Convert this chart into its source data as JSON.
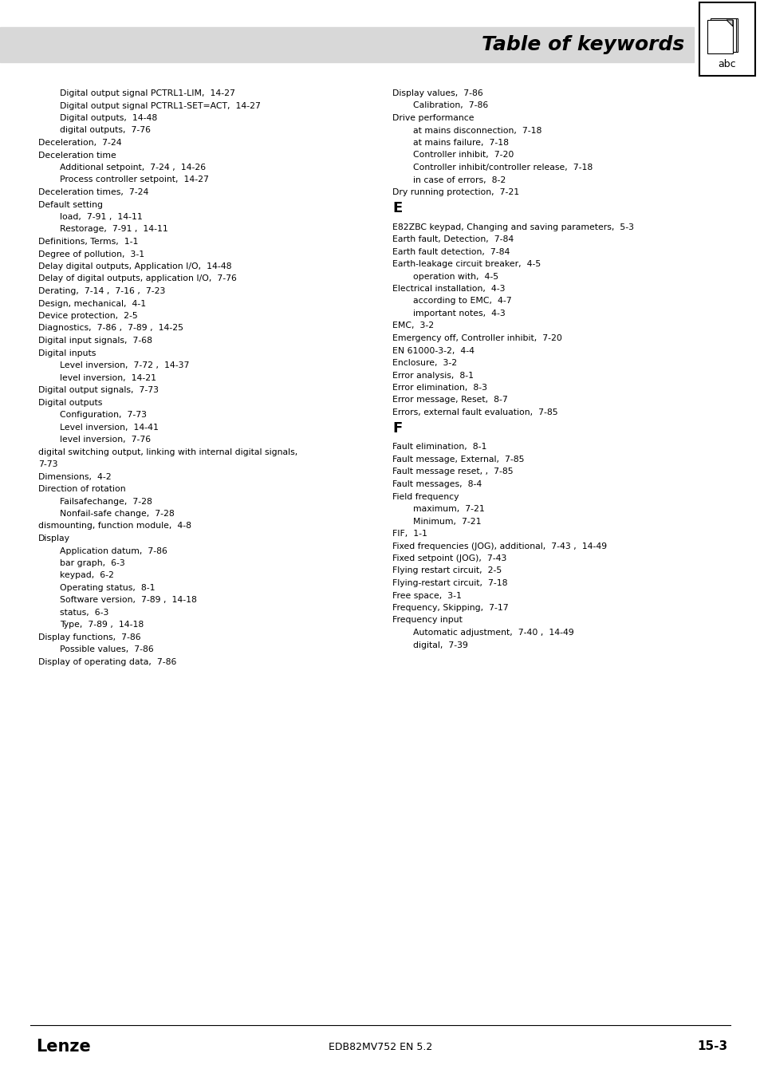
{
  "title": "Table of keywords",
  "bg_color": "#ffffff",
  "header_bg": "#d8d8d8",
  "footer_text_left": "Lenze",
  "footer_text_center": "EDB82MV752 EN 5.2",
  "footer_text_right": "15-3",
  "left_column": [
    {
      "text": "Digital output signal PCTRL1-LIM,  14-27",
      "indent": 1,
      "bold": false
    },
    {
      "text": "Digital output signal PCTRL1-SET=ACT,  14-27",
      "indent": 1,
      "bold": false
    },
    {
      "text": "Digital outputs,  14-48",
      "indent": 1,
      "bold": false
    },
    {
      "text": "digital outputs,  7-76",
      "indent": 1,
      "bold": false
    },
    {
      "text": "Deceleration,  7-24",
      "indent": 0,
      "bold": false
    },
    {
      "text": "Deceleration time",
      "indent": 0,
      "bold": false
    },
    {
      "text": "Additional setpoint,  7-24 ,  14-26",
      "indent": 1,
      "bold": false
    },
    {
      "text": "Process controller setpoint,  14-27",
      "indent": 1,
      "bold": false
    },
    {
      "text": "Deceleration times,  7-24",
      "indent": 0,
      "bold": false
    },
    {
      "text": "Default setting",
      "indent": 0,
      "bold": false
    },
    {
      "text": "load,  7-91 ,  14-11",
      "indent": 1,
      "bold": false
    },
    {
      "text": "Restorage,  7-91 ,  14-11",
      "indent": 1,
      "bold": false
    },
    {
      "text": "Definitions, Terms,  1-1",
      "indent": 0,
      "bold": false
    },
    {
      "text": "Degree of pollution,  3-1",
      "indent": 0,
      "bold": false
    },
    {
      "text": "Delay digital outputs, Application I/O,  14-48",
      "indent": 0,
      "bold": false
    },
    {
      "text": "Delay of digital outputs, application I/O,  7-76",
      "indent": 0,
      "bold": false
    },
    {
      "text": "Derating,  7-14 ,  7-16 ,  7-23",
      "indent": 0,
      "bold": false
    },
    {
      "text": "Design, mechanical,  4-1",
      "indent": 0,
      "bold": false
    },
    {
      "text": "Device protection,  2-5",
      "indent": 0,
      "bold": false
    },
    {
      "text": "Diagnostics,  7-86 ,  7-89 ,  14-25",
      "indent": 0,
      "bold": false
    },
    {
      "text": "Digital input signals,  7-68",
      "indent": 0,
      "bold": false
    },
    {
      "text": "Digital inputs",
      "indent": 0,
      "bold": false
    },
    {
      "text": "Level inversion,  7-72 ,  14-37",
      "indent": 1,
      "bold": false
    },
    {
      "text": "level inversion,  14-21",
      "indent": 1,
      "bold": false
    },
    {
      "text": "Digital output signals,  7-73",
      "indent": 0,
      "bold": false
    },
    {
      "text": "Digital outputs",
      "indent": 0,
      "bold": false
    },
    {
      "text": "Configuration,  7-73",
      "indent": 1,
      "bold": false
    },
    {
      "text": "Level inversion,  14-41",
      "indent": 1,
      "bold": false
    },
    {
      "text": "level inversion,  7-76",
      "indent": 1,
      "bold": false
    },
    {
      "text": "digital switching output, linking with internal digital signals,",
      "indent": 0,
      "bold": false
    },
    {
      "text": "7-73",
      "indent": 0,
      "bold": false
    },
    {
      "text": "Dimensions,  4-2",
      "indent": 0,
      "bold": false
    },
    {
      "text": "Direction of rotation",
      "indent": 0,
      "bold": false
    },
    {
      "text": "Failsafechange,  7-28",
      "indent": 1,
      "bold": false
    },
    {
      "text": "Nonfail-safe change,  7-28",
      "indent": 1,
      "bold": false
    },
    {
      "text": "dismounting, function module,  4-8",
      "indent": 0,
      "bold": false
    },
    {
      "text": "Display",
      "indent": 0,
      "bold": false
    },
    {
      "text": "Application datum,  7-86",
      "indent": 1,
      "bold": false
    },
    {
      "text": "bar graph,  6-3",
      "indent": 1,
      "bold": false
    },
    {
      "text": "keypad,  6-2",
      "indent": 1,
      "bold": false
    },
    {
      "text": "Operating status,  8-1",
      "indent": 1,
      "bold": false
    },
    {
      "text": "Software version,  7-89 ,  14-18",
      "indent": 1,
      "bold": false
    },
    {
      "text": "status,  6-3",
      "indent": 1,
      "bold": false
    },
    {
      "text": "Type,  7-89 ,  14-18",
      "indent": 1,
      "bold": false
    },
    {
      "text": "Display functions,  7-86",
      "indent": 0,
      "bold": false
    },
    {
      "text": "Possible values,  7-86",
      "indent": 1,
      "bold": false
    },
    {
      "text": "Display of operating data,  7-86",
      "indent": 0,
      "bold": false
    }
  ],
  "right_column": [
    {
      "text": "Display values,  7-86",
      "indent": 0,
      "bold": false
    },
    {
      "text": "Calibration,  7-86",
      "indent": 1,
      "bold": false
    },
    {
      "text": "Drive performance",
      "indent": 0,
      "bold": false
    },
    {
      "text": "at mains disconnection,  7-18",
      "indent": 1,
      "bold": false
    },
    {
      "text": "at mains failure,  7-18",
      "indent": 1,
      "bold": false
    },
    {
      "text": "Controller inhibit,  7-20",
      "indent": 1,
      "bold": false
    },
    {
      "text": "Controller inhibit/controller release,  7-18",
      "indent": 1,
      "bold": false
    },
    {
      "text": "in case of errors,  8-2",
      "indent": 1,
      "bold": false
    },
    {
      "text": "Dry running protection,  7-21",
      "indent": 0,
      "bold": false
    },
    {
      "text": "E",
      "indent": 0,
      "bold": true,
      "section_header": true
    },
    {
      "text": "E82ZBC keypad, Changing and saving parameters,  5-3",
      "indent": 0,
      "bold": false
    },
    {
      "text": "Earth fault, Detection,  7-84",
      "indent": 0,
      "bold": false
    },
    {
      "text": "Earth fault detection,  7-84",
      "indent": 0,
      "bold": false
    },
    {
      "text": "Earth-leakage circuit breaker,  4-5",
      "indent": 0,
      "bold": false
    },
    {
      "text": "operation with,  4-5",
      "indent": 1,
      "bold": false
    },
    {
      "text": "Electrical installation,  4-3",
      "indent": 0,
      "bold": false
    },
    {
      "text": "according to EMC,  4-7",
      "indent": 1,
      "bold": false
    },
    {
      "text": "important notes,  4-3",
      "indent": 1,
      "bold": false
    },
    {
      "text": "EMC,  3-2",
      "indent": 0,
      "bold": false
    },
    {
      "text": "Emergency off, Controller inhibit,  7-20",
      "indent": 0,
      "bold": false
    },
    {
      "text": "EN 61000-3-2,  4-4",
      "indent": 0,
      "bold": false
    },
    {
      "text": "Enclosure,  3-2",
      "indent": 0,
      "bold": false
    },
    {
      "text": "Error analysis,  8-1",
      "indent": 0,
      "bold": false
    },
    {
      "text": "Error elimination,  8-3",
      "indent": 0,
      "bold": false
    },
    {
      "text": "Error message, Reset,  8-7",
      "indent": 0,
      "bold": false
    },
    {
      "text": "Errors, external fault evaluation,  7-85",
      "indent": 0,
      "bold": false
    },
    {
      "text": "F",
      "indent": 0,
      "bold": true,
      "section_header": true
    },
    {
      "text": "Fault elimination,  8-1",
      "indent": 0,
      "bold": false
    },
    {
      "text": "Fault message, External,  7-85",
      "indent": 0,
      "bold": false
    },
    {
      "text": "Fault message reset, ,  7-85",
      "indent": 0,
      "bold": false
    },
    {
      "text": "Fault messages,  8-4",
      "indent": 0,
      "bold": false
    },
    {
      "text": "Field frequency",
      "indent": 0,
      "bold": false
    },
    {
      "text": "maximum,  7-21",
      "indent": 1,
      "bold": false
    },
    {
      "text": "Minimum,  7-21",
      "indent": 1,
      "bold": false
    },
    {
      "text": "FIF,  1-1",
      "indent": 0,
      "bold": false
    },
    {
      "text": "Fixed frequencies (JOG), additional,  7-43 ,  14-49",
      "indent": 0,
      "bold": false
    },
    {
      "text": "Fixed setpoint (JOG),  7-43",
      "indent": 0,
      "bold": false
    },
    {
      "text": "Flying restart circuit,  2-5",
      "indent": 0,
      "bold": false
    },
    {
      "text": "Flying-restart circuit,  7-18",
      "indent": 0,
      "bold": false
    },
    {
      "text": "Free space,  3-1",
      "indent": 0,
      "bold": false
    },
    {
      "text": "Frequency, Skipping,  7-17",
      "indent": 0,
      "bold": false
    },
    {
      "text": "Frequency input",
      "indent": 0,
      "bold": false
    },
    {
      "text": "Automatic adjustment,  7-40 ,  14-49",
      "indent": 1,
      "bold": false
    },
    {
      "text": "digital,  7-39",
      "indent": 1,
      "bold": false
    }
  ]
}
